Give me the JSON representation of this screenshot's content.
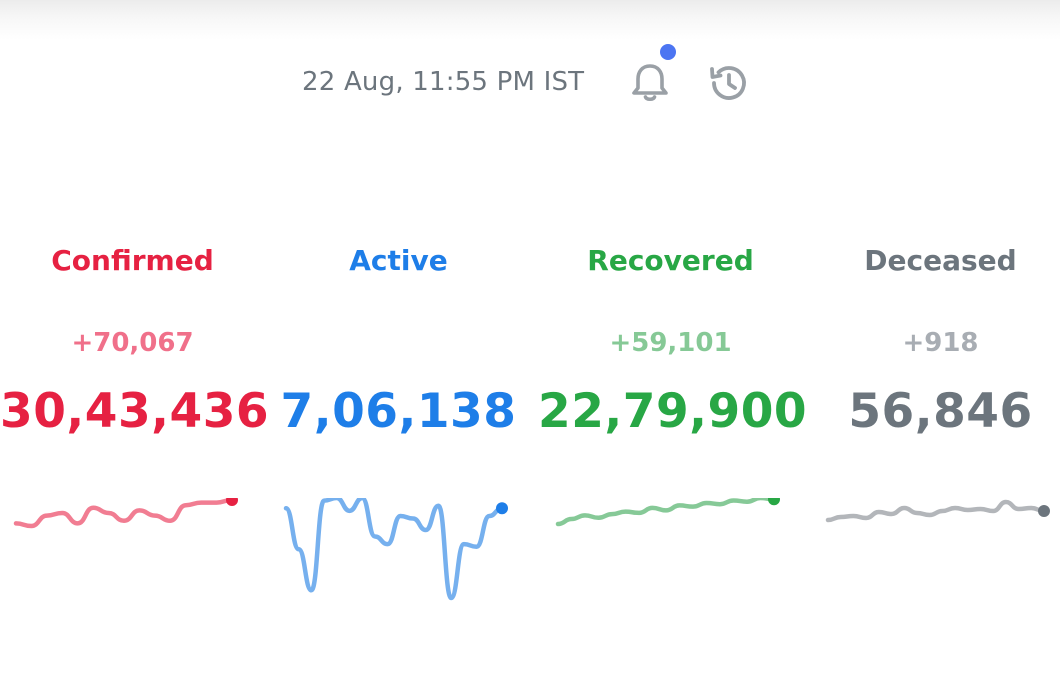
{
  "header": {
    "timestamp": "22 Aug, 11:55 PM IST",
    "notifications_icon": "bell-icon",
    "has_new_notification": true,
    "history_icon": "history-icon",
    "notification_dot_color": "#4c75f2",
    "icon_color": "#9aa0a6"
  },
  "stats": [
    {
      "key": "confirmed",
      "label": "Confirmed",
      "delta": "+70,067",
      "total": "30,43,436",
      "color": "#e62142",
      "delta_color": "#f0708a",
      "line_color": "#f17d92",
      "trend": [
        5,
        4,
        8,
        9,
        5,
        11,
        9,
        6,
        10,
        8,
        6,
        12,
        13,
        13,
        14
      ]
    },
    {
      "key": "active",
      "label": "Active",
      "delta": "",
      "total": "7,06,138",
      "color": "#1e7ee8",
      "delta_color": "#6da9f0",
      "line_color": "#76b0ee",
      "trend": [
        72,
        40,
        8,
        78,
        80,
        70,
        80,
        50,
        44,
        66,
        64,
        55,
        74,
        2,
        44,
        42,
        66,
        72
      ]
    },
    {
      "key": "recovered",
      "label": "Recovered",
      "delta": "+59,101",
      "total": "22,79,900",
      "color": "#28a745",
      "delta_color": "#86c996",
      "line_color": "#86c997",
      "trend": [
        2,
        6,
        9,
        7,
        10,
        12,
        11,
        15,
        13,
        17,
        16,
        19,
        18,
        21,
        20,
        23,
        22
      ]
    },
    {
      "key": "deceased",
      "label": "Deceased",
      "delta": "+918",
      "total": "56,846",
      "color": "#6c757d",
      "delta_color": "#a8adb3",
      "line_color": "#b3b6ba",
      "trend": [
        2,
        5,
        6,
        4,
        10,
        8,
        14,
        9,
        7,
        11,
        14,
        12,
        13,
        11,
        20,
        13,
        14,
        11
      ]
    }
  ]
}
